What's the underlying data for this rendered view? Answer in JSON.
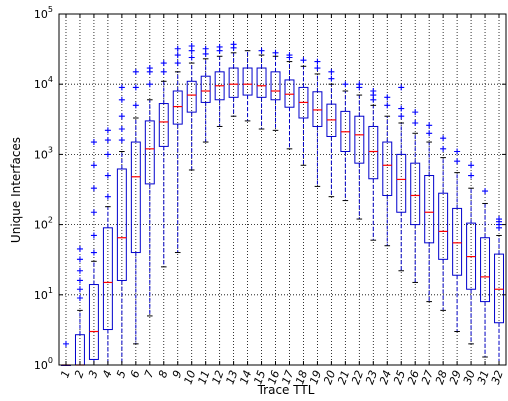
{
  "chart_data": {
    "type": "box",
    "xlabel": "Trace TTL",
    "ylabel": "Unique Interfaces",
    "yscale": "log",
    "ylim": [
      1,
      100000
    ],
    "grid": true,
    "colors": {
      "box": "#0000cc",
      "median": "#ff0000",
      "outlier": "#0000ff",
      "frame": "#000000",
      "grid": "#000000"
    },
    "y_ticks": [
      {
        "value": 1,
        "base": "10",
        "exp": "0"
      },
      {
        "value": 10,
        "base": "10",
        "exp": "1"
      },
      {
        "value": 100,
        "base": "10",
        "exp": "2"
      },
      {
        "value": 1000,
        "base": "10",
        "exp": "3"
      },
      {
        "value": 10000,
        "base": "10",
        "exp": "4"
      },
      {
        "value": 100000,
        "base": "10",
        "exp": "5"
      }
    ],
    "categories": [
      "1",
      "2",
      "3",
      "4",
      "5",
      "6",
      "7",
      "8",
      "9",
      "10",
      "11",
      "12",
      "13",
      "14",
      "15",
      "16",
      "17",
      "18",
      "19",
      "20",
      "21",
      "22",
      "23",
      "24",
      "25",
      "26",
      "27",
      "28",
      "29",
      "30",
      "31",
      "32"
    ],
    "boxes": [
      {
        "ttl": "1",
        "q1": 1,
        "median": 1,
        "q3": 1,
        "whisker_low": 1,
        "whisker_high": 1,
        "outliers": [
          2
        ]
      },
      {
        "ttl": "2",
        "q1": 1,
        "median": 1,
        "q3": 2.7,
        "whisker_low": 1,
        "whisker_high": 6,
        "outliers": [
          9,
          12,
          16,
          22,
          32,
          45
        ]
      },
      {
        "ttl": "3",
        "q1": 1.2,
        "median": 3,
        "q3": 14,
        "whisker_low": 1,
        "whisker_high": 30,
        "outliers": [
          40,
          70,
          150,
          330,
          700,
          1500
        ]
      },
      {
        "ttl": "4",
        "q1": 3.2,
        "median": 15,
        "q3": 90,
        "whisker_low": 1,
        "whisker_high": 180,
        "outliers": [
          250,
          500,
          1000,
          1600,
          2200
        ]
      },
      {
        "ttl": "5",
        "q1": 16,
        "median": 65,
        "q3": 620,
        "whisker_low": 1,
        "whisker_high": 1100,
        "outliers": [
          1600,
          2300,
          3500,
          6000,
          9000
        ]
      },
      {
        "ttl": "6",
        "q1": 40,
        "median": 480,
        "q3": 1500,
        "whisker_low": 2,
        "whisker_high": 3300,
        "outliers": [
          5000,
          9000,
          15000
        ]
      },
      {
        "ttl": "7",
        "q1": 380,
        "median": 1200,
        "q3": 3000,
        "whisker_low": 5,
        "whisker_high": 6000,
        "outliers": [
          10000,
          15000,
          17000
        ]
      },
      {
        "ttl": "8",
        "q1": 1300,
        "median": 2900,
        "q3": 5300,
        "whisker_low": 25,
        "whisker_high": 11000,
        "outliers": [
          15000,
          20000
        ]
      },
      {
        "ttl": "9",
        "q1": 2700,
        "median": 4800,
        "q3": 8000,
        "whisker_low": 40,
        "whisker_high": 15000,
        "outliers": [
          20000,
          26000,
          32000
        ]
      },
      {
        "ttl": "10",
        "q1": 4000,
        "median": 7000,
        "q3": 11000,
        "whisker_low": 600,
        "whisker_high": 20000,
        "outliers": [
          24000,
          30000,
          35000
        ]
      },
      {
        "ttl": "11",
        "q1": 5500,
        "median": 8000,
        "q3": 13000,
        "whisker_low": 1500,
        "whisker_high": 23000,
        "outliers": [
          27000,
          32000
        ]
      },
      {
        "ttl": "12",
        "q1": 6000,
        "median": 9500,
        "q3": 15000,
        "whisker_low": 2500,
        "whisker_high": 25000,
        "outliers": [
          30000,
          34000
        ]
      },
      {
        "ttl": "13",
        "q1": 6500,
        "median": 10000,
        "q3": 17000,
        "whisker_low": 3500,
        "whisker_high": 28000,
        "outliers": [
          33000,
          37000
        ]
      },
      {
        "ttl": "14",
        "q1": 7000,
        "median": 10000,
        "q3": 17000,
        "whisker_low": 3000,
        "whisker_high": 30000,
        "outliers": []
      },
      {
        "ttl": "15",
        "q1": 6500,
        "median": 9500,
        "q3": 17000,
        "whisker_low": 2300,
        "whisker_high": 26000,
        "outliers": [
          30000
        ]
      },
      {
        "ttl": "16",
        "q1": 6000,
        "median": 8000,
        "q3": 15000,
        "whisker_low": 2200,
        "whisker_high": 25000,
        "outliers": [
          28000
        ]
      },
      {
        "ttl": "17",
        "q1": 4700,
        "median": 7200,
        "q3": 11500,
        "whisker_low": 1200,
        "whisker_high": 21000,
        "outliers": [
          24000,
          26000
        ]
      },
      {
        "ttl": "18",
        "q1": 3300,
        "median": 5500,
        "q3": 9000,
        "whisker_low": 700,
        "whisker_high": 18000,
        "outliers": [
          22000
        ]
      },
      {
        "ttl": "19",
        "q1": 2500,
        "median": 4300,
        "q3": 7800,
        "whisker_low": 350,
        "whisker_high": 14000,
        "outliers": [
          17000,
          21000
        ]
      },
      {
        "ttl": "20",
        "q1": 1800,
        "median": 3100,
        "q3": 5200,
        "whisker_low": 250,
        "whisker_high": 10000,
        "outliers": [
          12000,
          15000
        ]
      },
      {
        "ttl": "21",
        "q1": 1100,
        "median": 2100,
        "q3": 4100,
        "whisker_low": 220,
        "whisker_high": 8000,
        "outliers": [
          10000
        ]
      },
      {
        "ttl": "22",
        "q1": 750,
        "median": 1900,
        "q3": 3500,
        "whisker_low": 120,
        "whisker_high": 7000,
        "outliers": [
          9000,
          10000
        ]
      },
      {
        "ttl": "23",
        "q1": 450,
        "median": 1100,
        "q3": 2500,
        "whisker_low": 60,
        "whisker_high": 5000,
        "outliers": [
          6000,
          7000,
          8000
        ]
      },
      {
        "ttl": "24",
        "q1": 260,
        "median": 700,
        "q3": 1500,
        "whisker_low": 50,
        "whisker_high": 3500,
        "outliers": [
          5000,
          6500
        ]
      },
      {
        "ttl": "25",
        "q1": 150,
        "median": 440,
        "q3": 1000,
        "whisker_low": 22,
        "whisker_high": 2800,
        "outliers": [
          3500,
          4500,
          9000
        ]
      },
      {
        "ttl": "26",
        "q1": 100,
        "median": 260,
        "q3": 750,
        "whisker_low": 15,
        "whisker_high": 2000,
        "outliers": [
          2800,
          4000
        ]
      },
      {
        "ttl": "27",
        "q1": 55,
        "median": 150,
        "q3": 500,
        "whisker_low": 8,
        "whisker_high": 1500,
        "outliers": [
          2000,
          2600
        ]
      },
      {
        "ttl": "28",
        "q1": 32,
        "median": 80,
        "q3": 280,
        "whisker_low": 6,
        "whisker_high": 900,
        "outliers": [
          1200,
          1700
        ]
      },
      {
        "ttl": "29",
        "q1": 19,
        "median": 55,
        "q3": 170,
        "whisker_low": 3,
        "whisker_high": 550,
        "outliers": [
          800,
          1100
        ]
      },
      {
        "ttl": "30",
        "q1": 12,
        "median": 35,
        "q3": 105,
        "whisker_low": 2,
        "whisker_high": 330,
        "outliers": [
          500,
          700
        ]
      },
      {
        "ttl": "31",
        "q1": 8,
        "median": 18,
        "q3": 65,
        "whisker_low": 1.3,
        "whisker_high": 200,
        "outliers": [
          300
        ]
      },
      {
        "ttl": "32",
        "q1": 4,
        "median": 12,
        "q3": 38,
        "whisker_low": 1,
        "whisker_high": 70,
        "outliers": [
          90,
          100,
          110,
          120
        ]
      }
    ]
  }
}
